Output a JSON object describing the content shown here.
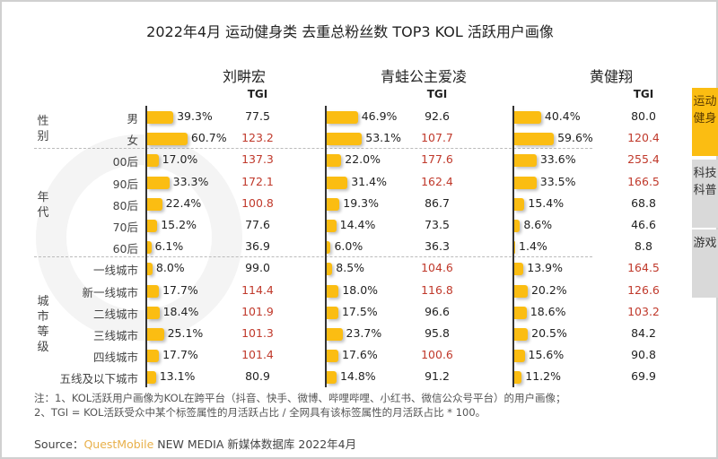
{
  "title": "2022年4月 运动健身类 去重总粉丝数 TOP3 KOL 活跃用户画像",
  "tgi_label": "TGI",
  "watermark": "QUESTMOBILE",
  "colors": {
    "bar": "#fbbd12",
    "tgi_high": "#c0392b",
    "tgi_normal": "#222222",
    "tab_active": "#fbbd12",
    "tab_inactive": "#d9d9d9"
  },
  "side_tabs": [
    {
      "label": "运动健身",
      "active": true
    },
    {
      "label": "科技科普",
      "active": false
    },
    {
      "label": "游戏",
      "active": false
    }
  ],
  "groups": [
    {
      "label": "性别",
      "rows": [
        "男",
        "女"
      ]
    },
    {
      "label": "年代",
      "rows": [
        "00后",
        "90后",
        "80后",
        "70后",
        "60后"
      ]
    },
    {
      "label": "城市等级",
      "rows": [
        "一线城市",
        "新一线城市",
        "二线城市",
        "三线城市",
        "四线城市",
        "五线及以下城市"
      ]
    }
  ],
  "chart_data": {
    "type": "table",
    "title": "2022年4月 运动健身类 去重总粉丝数 TOP3 KOL 活跃用户画像",
    "categories": [
      "男",
      "女",
      "00后",
      "90后",
      "80后",
      "70后",
      "60后",
      "一线城市",
      "新一线城市",
      "二线城市",
      "三线城市",
      "四线城市",
      "五线及以下城市"
    ],
    "series": [
      {
        "name": "刘畊宏",
        "share": [
          "39.3%",
          "60.7%",
          "17.0%",
          "33.3%",
          "22.4%",
          "15.2%",
          "6.1%",
          "8.0%",
          "17.7%",
          "18.4%",
          "25.1%",
          "17.7%",
          "13.1%"
        ],
        "tgi": [
          "77.5",
          "123.2",
          "137.3",
          "172.1",
          "100.8",
          "77.6",
          "36.9",
          "99.0",
          "114.4",
          "101.9",
          "101.3",
          "101.4",
          "80.9"
        ]
      },
      {
        "name": "青蛙公主爱凌",
        "share": [
          "46.9%",
          "53.1%",
          "22.0%",
          "31.4%",
          "19.3%",
          "14.4%",
          "6.0%",
          "8.5%",
          "18.0%",
          "17.5%",
          "23.7%",
          "17.6%",
          "14.8%"
        ],
        "tgi": [
          "92.6",
          "107.7",
          "177.6",
          "162.4",
          "86.7",
          "73.5",
          "36.3",
          "104.6",
          "116.8",
          "96.6",
          "95.8",
          "100.6",
          "91.2"
        ]
      },
      {
        "name": "黄健翔",
        "share": [
          "40.4%",
          "59.6%",
          "33.6%",
          "33.5%",
          "15.4%",
          "8.6%",
          "1.4%",
          "13.9%",
          "20.2%",
          "18.6%",
          "20.5%",
          "15.6%",
          "11.2%"
        ],
        "tgi": [
          "80.0",
          "120.4",
          "255.4",
          "166.5",
          "68.8",
          "46.6",
          "8.8",
          "164.5",
          "126.6",
          "103.2",
          "84.2",
          "90.8",
          "69.9"
        ]
      }
    ]
  },
  "notes": [
    "注：1、KOL活跃用户画像为KOL在跨平台（抖音、快手、微博、哔哩哔哩、小红书、微信公众号平台）的用户画像；",
    "2、TGI = KOL活跃受众中某个标签属性的月活跃占比 / 全网具有该标签属性的月活跃占比 * 100。"
  ],
  "source": {
    "prefix": "Source：",
    "brand": "QuestMobile",
    "text": "NEW MEDIA 新媒体数据库 2022年4月"
  }
}
